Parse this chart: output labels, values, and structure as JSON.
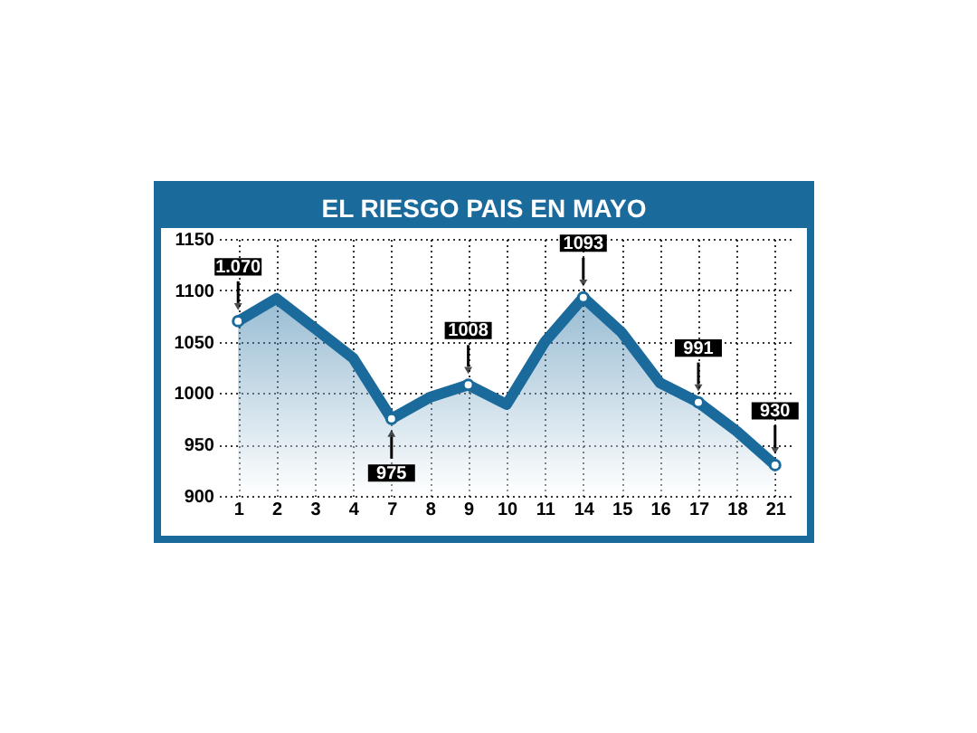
{
  "chart_data": {
    "type": "area",
    "title": "EL RIESGO PAIS EN MAYO",
    "categories": [
      "1",
      "2",
      "3",
      "4",
      "7",
      "8",
      "9",
      "10",
      "11",
      "14",
      "15",
      "16",
      "17",
      "18",
      "21"
    ],
    "series": [
      {
        "color": "#1b6a9c",
        "values": [
          1070,
          1092,
          1063,
          1034,
          975,
          996,
          1008,
          989,
          1050,
          1093,
          1059,
          1010,
          991,
          963,
          930
        ],
        "value_labels": [
          "1.070",
          null,
          null,
          null,
          "975",
          null,
          "1008",
          null,
          null,
          "1093",
          null,
          null,
          "991",
          null,
          "930"
        ]
      }
    ],
    "ylim": [
      900,
      1150
    ],
    "yticks": [
      900,
      950,
      1000,
      1050,
      1100,
      1150
    ],
    "grid": true,
    "line_style": "solid"
  }
}
